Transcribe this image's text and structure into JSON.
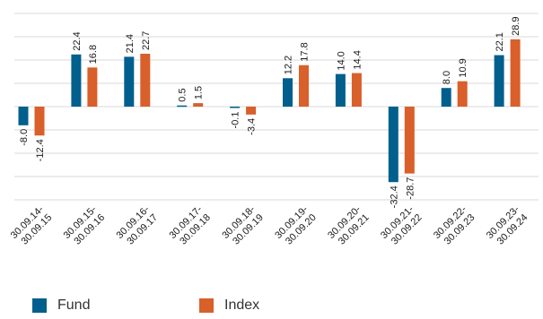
{
  "chart_data": {
    "type": "bar",
    "title": "",
    "xlabel": "",
    "ylabel": "",
    "ylim": [
      -40,
      40
    ],
    "grid_lines": [
      -40,
      -30,
      -20,
      -10,
      0,
      10,
      20,
      30,
      40
    ],
    "grid": true,
    "legend_position": "bottom-left",
    "categories": [
      "30.09.14-30.09.15",
      "30.09.15-30.09.16",
      "30.09.16-30.09.17",
      "30.09.17-30.09.18",
      "30.09.18-30.09.19",
      "30.09.19-30.09.20",
      "30.09.20-30.09.21",
      "30.09.21-30.09.22",
      "30.09.22-30.09.23",
      "30.09.23-30.09.24"
    ],
    "category_lines": [
      [
        "30.09.14-",
        "30.09.15"
      ],
      [
        "30.09.15-",
        "30.09.16"
      ],
      [
        "30.09.16-",
        "30.09.17"
      ],
      [
        "30.09.17-",
        "30.09.18"
      ],
      [
        "30.09.18-",
        "30.09.19"
      ],
      [
        "30.09.19-",
        "30.09.20"
      ],
      [
        "30.09.20-",
        "30.09.21"
      ],
      [
        "30.09.21-",
        "30.09.22"
      ],
      [
        "30.09.22-",
        "30.09.23"
      ],
      [
        "30.09.23-",
        "30.09.24"
      ]
    ],
    "series": [
      {
        "name": "Fund",
        "color": "#005f8c",
        "values": [
          -8.0,
          22.4,
          21.4,
          0.5,
          -0.1,
          12.2,
          14.0,
          -32.4,
          8.0,
          22.1
        ],
        "labels": [
          "-8.0",
          "22.4",
          "21.4",
          "0.5",
          "-0.1",
          "12.2",
          "14.0",
          "-32.4",
          "8.0",
          "22.1"
        ]
      },
      {
        "name": "Index",
        "color": "#d95f2b",
        "values": [
          -12.4,
          16.8,
          22.7,
          1.5,
          -3.4,
          17.8,
          14.4,
          -28.7,
          10.9,
          28.9
        ],
        "labels": [
          "-12.4",
          "16.8",
          "22.7",
          "1.5",
          "-3.4",
          "17.8",
          "14.4",
          "-28.7",
          "10.9",
          "28.9"
        ]
      }
    ]
  },
  "legend": {
    "items": [
      {
        "label": "Fund",
        "color": "#005f8c"
      },
      {
        "label": "Index",
        "color": "#d95f2b"
      }
    ]
  }
}
